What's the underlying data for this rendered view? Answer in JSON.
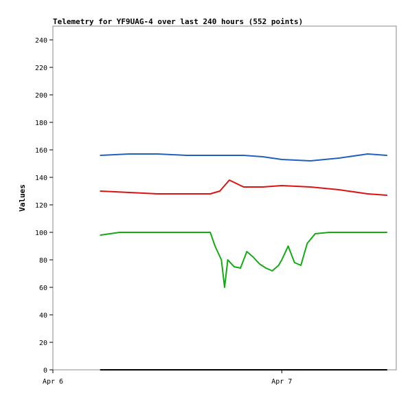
{
  "chart_data": {
    "type": "line",
    "title": "Telemetry for YF9UAG-4 over last 240 hours (552 points)",
    "xlabel": "",
    "ylabel": "Values",
    "xlim": [
      "2024-04-06T00:00",
      "2024-04-07T12:00"
    ],
    "ylim": [
      0,
      250
    ],
    "yticks": [
      0,
      20,
      40,
      60,
      80,
      100,
      120,
      140,
      160,
      180,
      200,
      220,
      240
    ],
    "xticks": [
      {
        "label": "Apr 6",
        "value": "2024-04-06T00:00"
      },
      {
        "label": "Apr 7",
        "value": "2024-04-07T00:00"
      }
    ],
    "grid": false,
    "legend": "none",
    "series": [
      {
        "color": "#1f5fbf",
        "x": [
          "2024-04-06T05:00",
          "2024-04-06T08:00",
          "2024-04-06T11:00",
          "2024-04-06T14:00",
          "2024-04-06T17:00",
          "2024-04-06T20:00",
          "2024-04-06T22:00",
          "2024-04-07T00:00",
          "2024-04-07T03:00",
          "2024-04-07T06:00",
          "2024-04-07T09:00",
          "2024-04-07T11:00"
        ],
        "values": [
          156,
          157,
          157,
          156,
          156,
          156,
          155,
          153,
          152,
          154,
          157,
          156
        ]
      },
      {
        "color": "#dd1111",
        "x": [
          "2024-04-06T05:00",
          "2024-04-06T08:00",
          "2024-04-06T11:00",
          "2024-04-06T14:00",
          "2024-04-06T16:30",
          "2024-04-06T17:30",
          "2024-04-06T18:30",
          "2024-04-06T20:00",
          "2024-04-06T22:00",
          "2024-04-07T00:00",
          "2024-04-07T03:00",
          "2024-04-07T06:00",
          "2024-04-07T09:00",
          "2024-04-07T11:00"
        ],
        "values": [
          130,
          129,
          128,
          128,
          128,
          130,
          138,
          133,
          133,
          134,
          133,
          131,
          128,
          127
        ]
      },
      {
        "color": "#11aa11",
        "x": [
          "2024-04-06T05:00",
          "2024-04-06T07:00",
          "2024-04-06T10:00",
          "2024-04-06T14:00",
          "2024-04-06T16:30",
          "2024-04-06T17:00",
          "2024-04-06T17:40",
          "2024-04-06T18:00",
          "2024-04-06T18:20",
          "2024-04-06T19:00",
          "2024-04-06T19:40",
          "2024-04-06T20:20",
          "2024-04-06T21:00",
          "2024-04-06T21:40",
          "2024-04-06T22:20",
          "2024-04-06T23:00",
          "2024-04-06T23:40",
          "2024-04-07T00:00",
          "2024-04-07T00:40",
          "2024-04-07T01:20",
          "2024-04-07T02:00",
          "2024-04-07T02:40",
          "2024-04-07T03:30",
          "2024-04-07T05:00",
          "2024-04-07T08:00",
          "2024-04-07T11:00"
        ],
        "values": [
          98,
          100,
          100,
          100,
          100,
          90,
          80,
          60,
          80,
          75,
          74,
          86,
          82,
          77,
          74,
          72,
          76,
          80,
          90,
          78,
          76,
          92,
          99,
          100,
          100,
          100
        ]
      },
      {
        "color": "#000000",
        "x": [
          "2024-04-06T05:00",
          "2024-04-07T11:00"
        ],
        "values": [
          0,
          0
        ]
      }
    ]
  }
}
